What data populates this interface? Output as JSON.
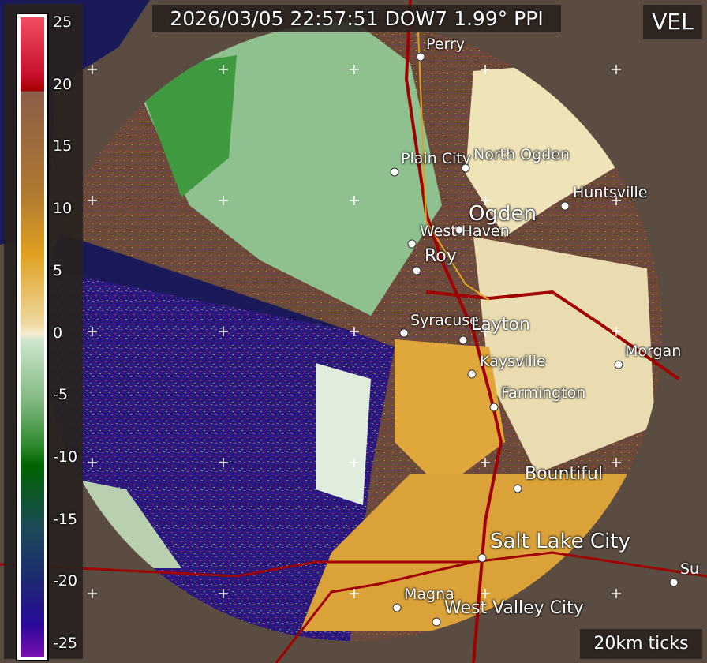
{
  "header": {
    "title": "2026/03/05 22:57:51 DOW7 1.99° PPI",
    "product": "VEL"
  },
  "footer": {
    "scale_label": "20km ticks"
  },
  "colorbar": {
    "labels": [
      "25",
      "20",
      "15",
      "10",
      "5",
      "0",
      "-5",
      "-10",
      "-15",
      "-20",
      "-25"
    ],
    "min": -25,
    "max": 25,
    "colors": [
      "#f04d63",
      "#a30000",
      "#8b5e48",
      "#e0a020",
      "#f5ecd0",
      "#cfe6cf",
      "#2f8a2f",
      "#006400",
      "#1c2a70",
      "#7a10b0"
    ]
  },
  "cities": [
    {
      "name": "Perry",
      "size": "s"
    },
    {
      "name": "Plain City",
      "size": "s"
    },
    {
      "name": "North Ogden",
      "size": "s"
    },
    {
      "name": "Huntsville",
      "size": "s"
    },
    {
      "name": "Ogden",
      "size": "l"
    },
    {
      "name": "West Haven",
      "size": "s"
    },
    {
      "name": "Roy",
      "size": "m"
    },
    {
      "name": "Syracuse",
      "size": "s"
    },
    {
      "name": "Layton",
      "size": "m"
    },
    {
      "name": "Morgan",
      "size": "s"
    },
    {
      "name": "Kaysville",
      "size": "s"
    },
    {
      "name": "Farmington",
      "size": "s"
    },
    {
      "name": "Bountiful",
      "size": "m"
    },
    {
      "name": "Salt Lake City",
      "size": "l"
    },
    {
      "name": "Magna",
      "size": "s"
    },
    {
      "name": "West Valley City",
      "size": "m"
    },
    {
      "name": "Su",
      "size": "s"
    }
  ],
  "colors": {
    "background": "#5b4c41",
    "lake": "#1a1a5a",
    "highway": "#a00000",
    "road": "#e0a020"
  }
}
